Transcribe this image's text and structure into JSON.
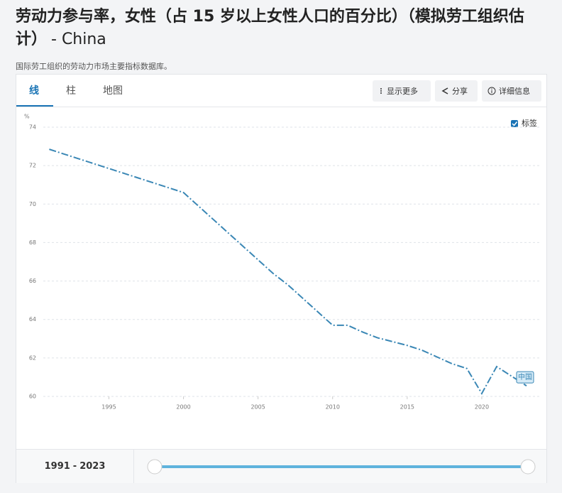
{
  "header": {
    "title": "劳动力参与率，女性（占 15 岁以上女性人口的百分比）（模拟劳工组织估计）",
    "country": "- China",
    "source": "国际劳工组织的劳动力市场主要指标数据库。"
  },
  "tabs": [
    "线",
    "柱",
    "地图"
  ],
  "buttons": [
    "显示更多",
    "分享",
    "详细信息"
  ],
  "chart_data": {
    "type": "line",
    "y_unit": "%",
    "labels_toggle": "标签",
    "grid": true,
    "x": [
      1991,
      1992,
      1993,
      1994,
      1995,
      1996,
      1997,
      1998,
      1999,
      2000,
      2001,
      2002,
      2003,
      2004,
      2005,
      2006,
      2007,
      2008,
      2009,
      2010,
      2011,
      2012,
      2013,
      2014,
      2015,
      2016,
      2017,
      2018,
      2019,
      2020,
      2021,
      2022,
      2023
    ],
    "series": [
      {
        "name": "中国",
        "color": "#3a87b5",
        "values": [
          72.85,
          72.6,
          72.35,
          72.1,
          71.85,
          71.6,
          71.35,
          71.1,
          70.85,
          70.6,
          69.9,
          69.2,
          68.5,
          67.8,
          67.1,
          66.4,
          65.8,
          65.1,
          64.4,
          63.7,
          63.7,
          63.35,
          63.05,
          62.85,
          62.65,
          62.4,
          62.05,
          61.7,
          61.45,
          60.15,
          61.55,
          61.05,
          60.55
        ]
      }
    ],
    "xlim": [
      1990.6,
      2024
    ],
    "xticks": [
      1995,
      2000,
      2005,
      2010,
      2015,
      2020
    ],
    "ylim": [
      60,
      74
    ],
    "yticks": [
      60,
      62,
      64,
      66,
      68,
      70,
      72,
      74
    ]
  },
  "range": {
    "start": "1991",
    "separator": "-",
    "end": "2023"
  }
}
